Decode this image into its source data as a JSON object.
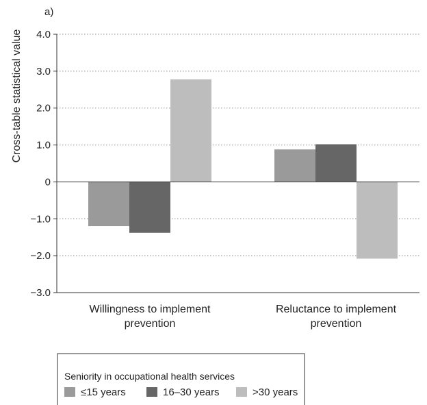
{
  "chart_data": {
    "type": "bar",
    "panel_label": "a)",
    "title": "",
    "xlabel": "",
    "ylabel": "Cross-table statistical value",
    "ylim": [
      -3.0,
      4.0
    ],
    "yticks": [
      {
        "value": 4.0,
        "label": "4.0"
      },
      {
        "value": 3.0,
        "label": "3.0"
      },
      {
        "value": 2.0,
        "label": "2.0"
      },
      {
        "value": 1.0,
        "label": "1.0"
      },
      {
        "value": 0.0,
        "label": "0"
      },
      {
        "value": -1.0,
        "label": "−1.0"
      },
      {
        "value": -2.0,
        "label": "−2.0"
      },
      {
        "value": -3.0,
        "label": "−3.0"
      }
    ],
    "categories": [
      [
        "Willingness to implement",
        "prevention"
      ],
      [
        "Reluctance to implement",
        "prevention"
      ]
    ],
    "series": [
      {
        "name": "≤15 years",
        "color": "#9a9a9a",
        "values": [
          -1.2,
          0.88
        ]
      },
      {
        "name": "16–30 years",
        "color": "#666666",
        "values": [
          -1.38,
          1.02
        ]
      },
      {
        "name": ">30 years",
        "color": "#bdbdbd",
        "values": [
          2.78,
          -2.08
        ]
      }
    ],
    "grid": "horizontal dotted",
    "legend": {
      "title": "Seniority in occupational health services",
      "placement": "bottom-left"
    }
  }
}
